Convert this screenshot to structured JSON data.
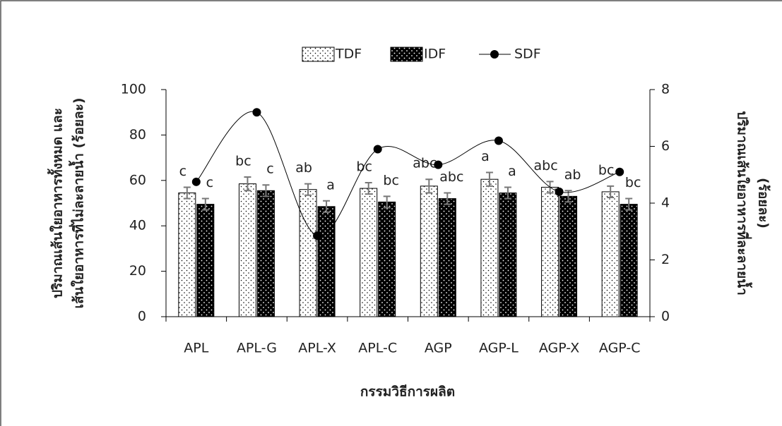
{
  "chart_data": {
    "type": "bar",
    "xlabel": "กรรมวิธีการผลิต",
    "ylabel": [
      "ปริมาณเส้นใยอาหารทั้งหมด และ",
      "เส้นใยอาหารที่ไม่ละลายน้ำ (ร้อยละ)"
    ],
    "y2label": [
      "ปริมาณเส้นใยอาหารที่ละลายน้ำ",
      "(ร้อยละ)"
    ],
    "categories": [
      "APL",
      "APL-G",
      "APL-X",
      "APL-C",
      "AGP",
      "AGP-L",
      "AGP-X",
      "AGP-C"
    ],
    "series": [
      {
        "name": "TDF",
        "color": "#ffffff",
        "values": [
          54.5,
          58.5,
          56,
          56.5,
          57.5,
          60.5,
          57,
          55
        ],
        "errors": [
          2.5,
          3,
          2.5,
          2.5,
          3,
          3,
          2.5,
          2.5
        ],
        "labels": [
          "c",
          "bc",
          "ab",
          "bc",
          "abc",
          "a",
          "abc",
          "bc"
        ]
      },
      {
        "name": "IDF",
        "color": "#000000",
        "values": [
          49.5,
          55.5,
          48.5,
          50.5,
          52,
          54.5,
          53,
          49.5
        ],
        "errors": [
          2.5,
          2.5,
          2.5,
          2.5,
          2.5,
          2.5,
          2.5,
          2.5
        ],
        "labels": [
          "c",
          "c",
          "a",
          "bc",
          "abc",
          "a",
          "ab",
          "bc"
        ]
      },
      {
        "name": "SDF",
        "color": "#000000",
        "axis": "y2",
        "type": "line",
        "values": [
          4.75,
          7.2,
          2.85,
          5.9,
          5.35,
          6.2,
          4.4,
          5.1
        ]
      }
    ],
    "ylim": [
      0,
      100
    ],
    "yticks": [
      0,
      20,
      40,
      60,
      80,
      100
    ],
    "y2lim": [
      0,
      8
    ],
    "y2ticks": [
      0,
      2,
      4,
      6,
      8
    ],
    "legend": "top"
  }
}
